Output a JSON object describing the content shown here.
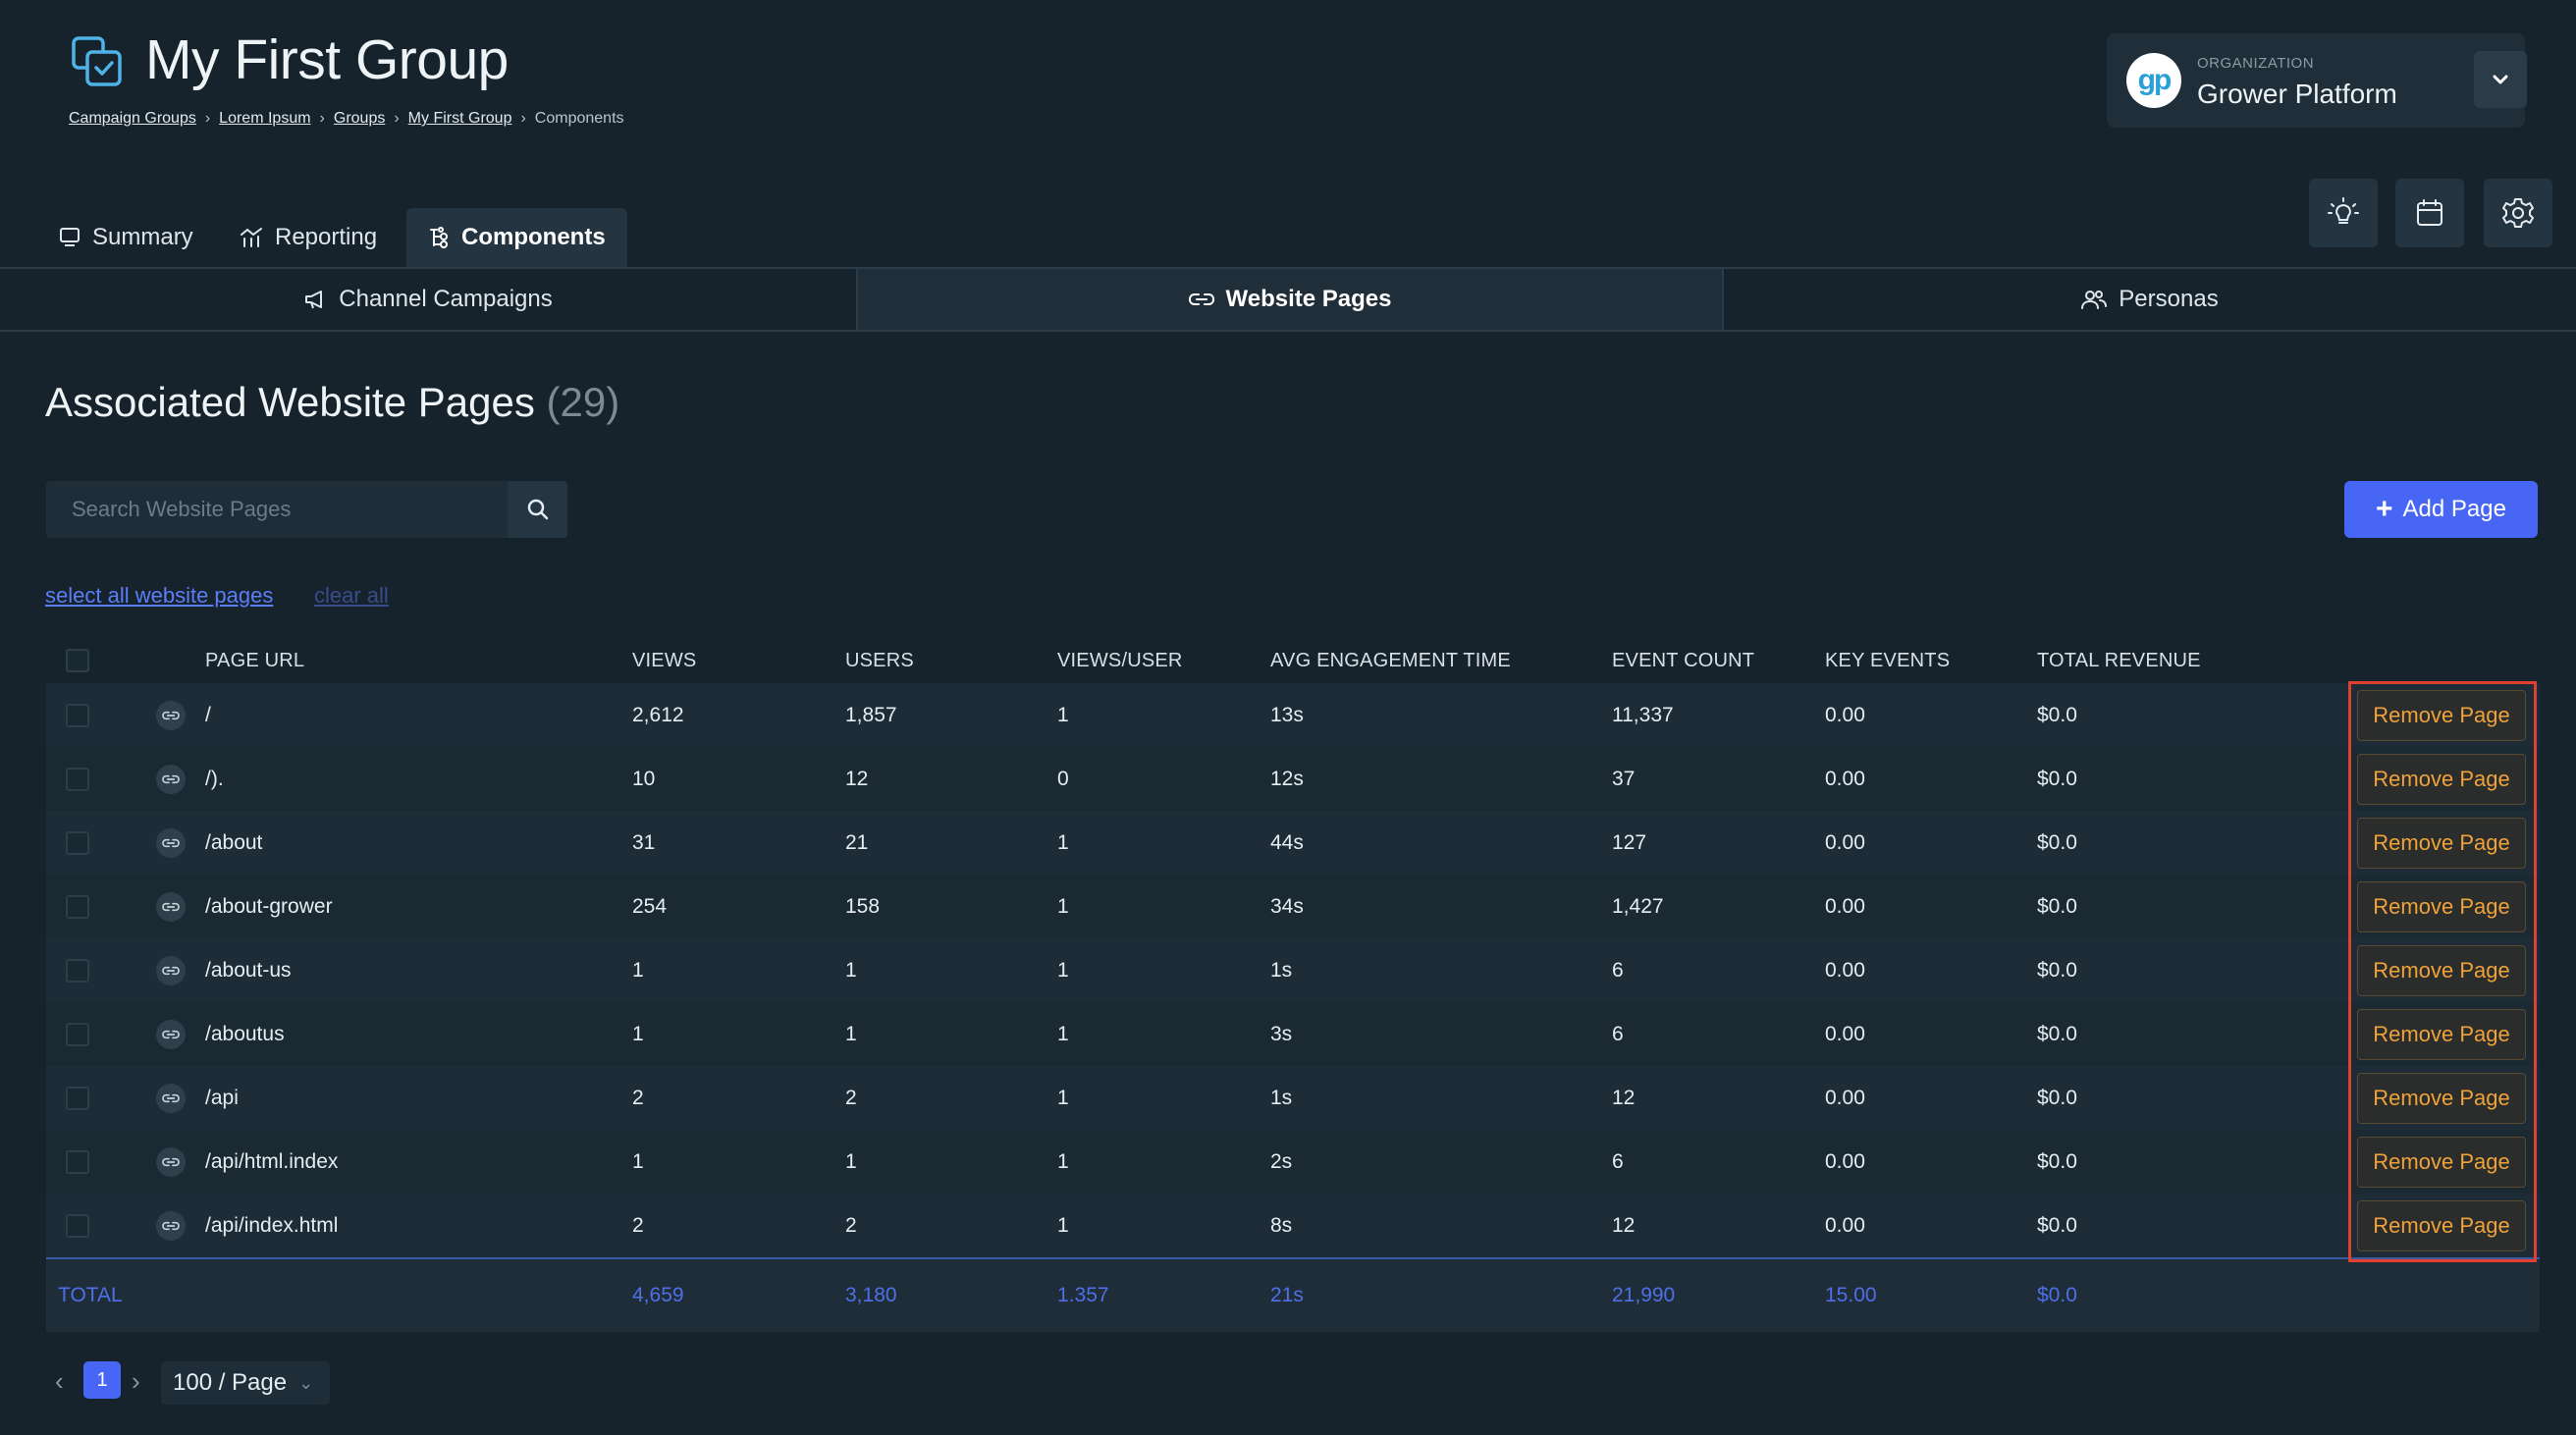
{
  "header": {
    "title": "My First Group",
    "breadcrumb": {
      "links": [
        "Campaign Groups",
        "Lorem Ipsum",
        "Groups",
        "My First Group"
      ],
      "current": "Components",
      "separator": "›"
    }
  },
  "organization": {
    "label": "ORGANIZATION",
    "name": "Grower Platform",
    "logo_text": "gp"
  },
  "icons": {
    "header_buttons": [
      "lightbulb-icon",
      "calendar-icon",
      "gear-icon"
    ]
  },
  "main_tabs": [
    {
      "label": "Summary",
      "icon": "monitor-icon",
      "active": false
    },
    {
      "label": "Reporting",
      "icon": "reporting-icon",
      "active": false
    },
    {
      "label": "Components",
      "icon": "components-icon",
      "active": true
    }
  ],
  "sub_tabs": [
    {
      "label": "Channel Campaigns",
      "icon": "megaphone-icon",
      "active": false
    },
    {
      "label": "Website Pages",
      "icon": "link-icon",
      "active": true
    },
    {
      "label": "Personas",
      "icon": "users-icon",
      "active": false
    }
  ],
  "section": {
    "title": "Associated Website Pages",
    "count": "(29)"
  },
  "search": {
    "placeholder": "Search Website Pages",
    "value": ""
  },
  "actions": {
    "add_page_label": "Add Page",
    "select_all_label": "select all website pages",
    "clear_all_label": "clear all",
    "remove_label": "Remove Page"
  },
  "table": {
    "columns": [
      "PAGE URL",
      "VIEWS",
      "USERS",
      "VIEWS/USER",
      "AVG ENGAGEMENT TIME",
      "EVENT COUNT",
      "KEY EVENTS",
      "TOTAL REVENUE"
    ],
    "rows": [
      {
        "url": "/",
        "views": "2,612",
        "users": "1,857",
        "vpu": "1",
        "avg": "13s",
        "events": "11,337",
        "key": "0.00",
        "rev": "$0.0"
      },
      {
        "url": "/).",
        "views": "10",
        "users": "12",
        "vpu": "0",
        "avg": "12s",
        "events": "37",
        "key": "0.00",
        "rev": "$0.0"
      },
      {
        "url": "/about",
        "views": "31",
        "users": "21",
        "vpu": "1",
        "avg": "44s",
        "events": "127",
        "key": "0.00",
        "rev": "$0.0"
      },
      {
        "url": "/about-grower",
        "views": "254",
        "users": "158",
        "vpu": "1",
        "avg": "34s",
        "events": "1,427",
        "key": "0.00",
        "rev": "$0.0"
      },
      {
        "url": "/about-us",
        "views": "1",
        "users": "1",
        "vpu": "1",
        "avg": "1s",
        "events": "6",
        "key": "0.00",
        "rev": "$0.0"
      },
      {
        "url": "/aboutus",
        "views": "1",
        "users": "1",
        "vpu": "1",
        "avg": "3s",
        "events": "6",
        "key": "0.00",
        "rev": "$0.0"
      },
      {
        "url": "/api",
        "views": "2",
        "users": "2",
        "vpu": "1",
        "avg": "1s",
        "events": "12",
        "key": "0.00",
        "rev": "$0.0"
      },
      {
        "url": "/api/html.index",
        "views": "1",
        "users": "1",
        "vpu": "1",
        "avg": "2s",
        "events": "6",
        "key": "0.00",
        "rev": "$0.0"
      },
      {
        "url": "/api/index.html",
        "views": "2",
        "users": "2",
        "vpu": "1",
        "avg": "8s",
        "events": "12",
        "key": "0.00",
        "rev": "$0.0"
      }
    ],
    "total": {
      "label": "TOTAL",
      "views": "4,659",
      "users": "3,180",
      "vpu": "1.357",
      "avg": "21s",
      "events": "21,990",
      "key": "15.00",
      "rev": "$0.0"
    }
  },
  "pagination": {
    "prev": "‹",
    "current_page": "1",
    "next": "›",
    "page_size": "100 / Page"
  },
  "colors": {
    "background": "#16232d",
    "accent": "#4866f5",
    "remove": "#f0a23a",
    "highlight": "#e0402f"
  }
}
